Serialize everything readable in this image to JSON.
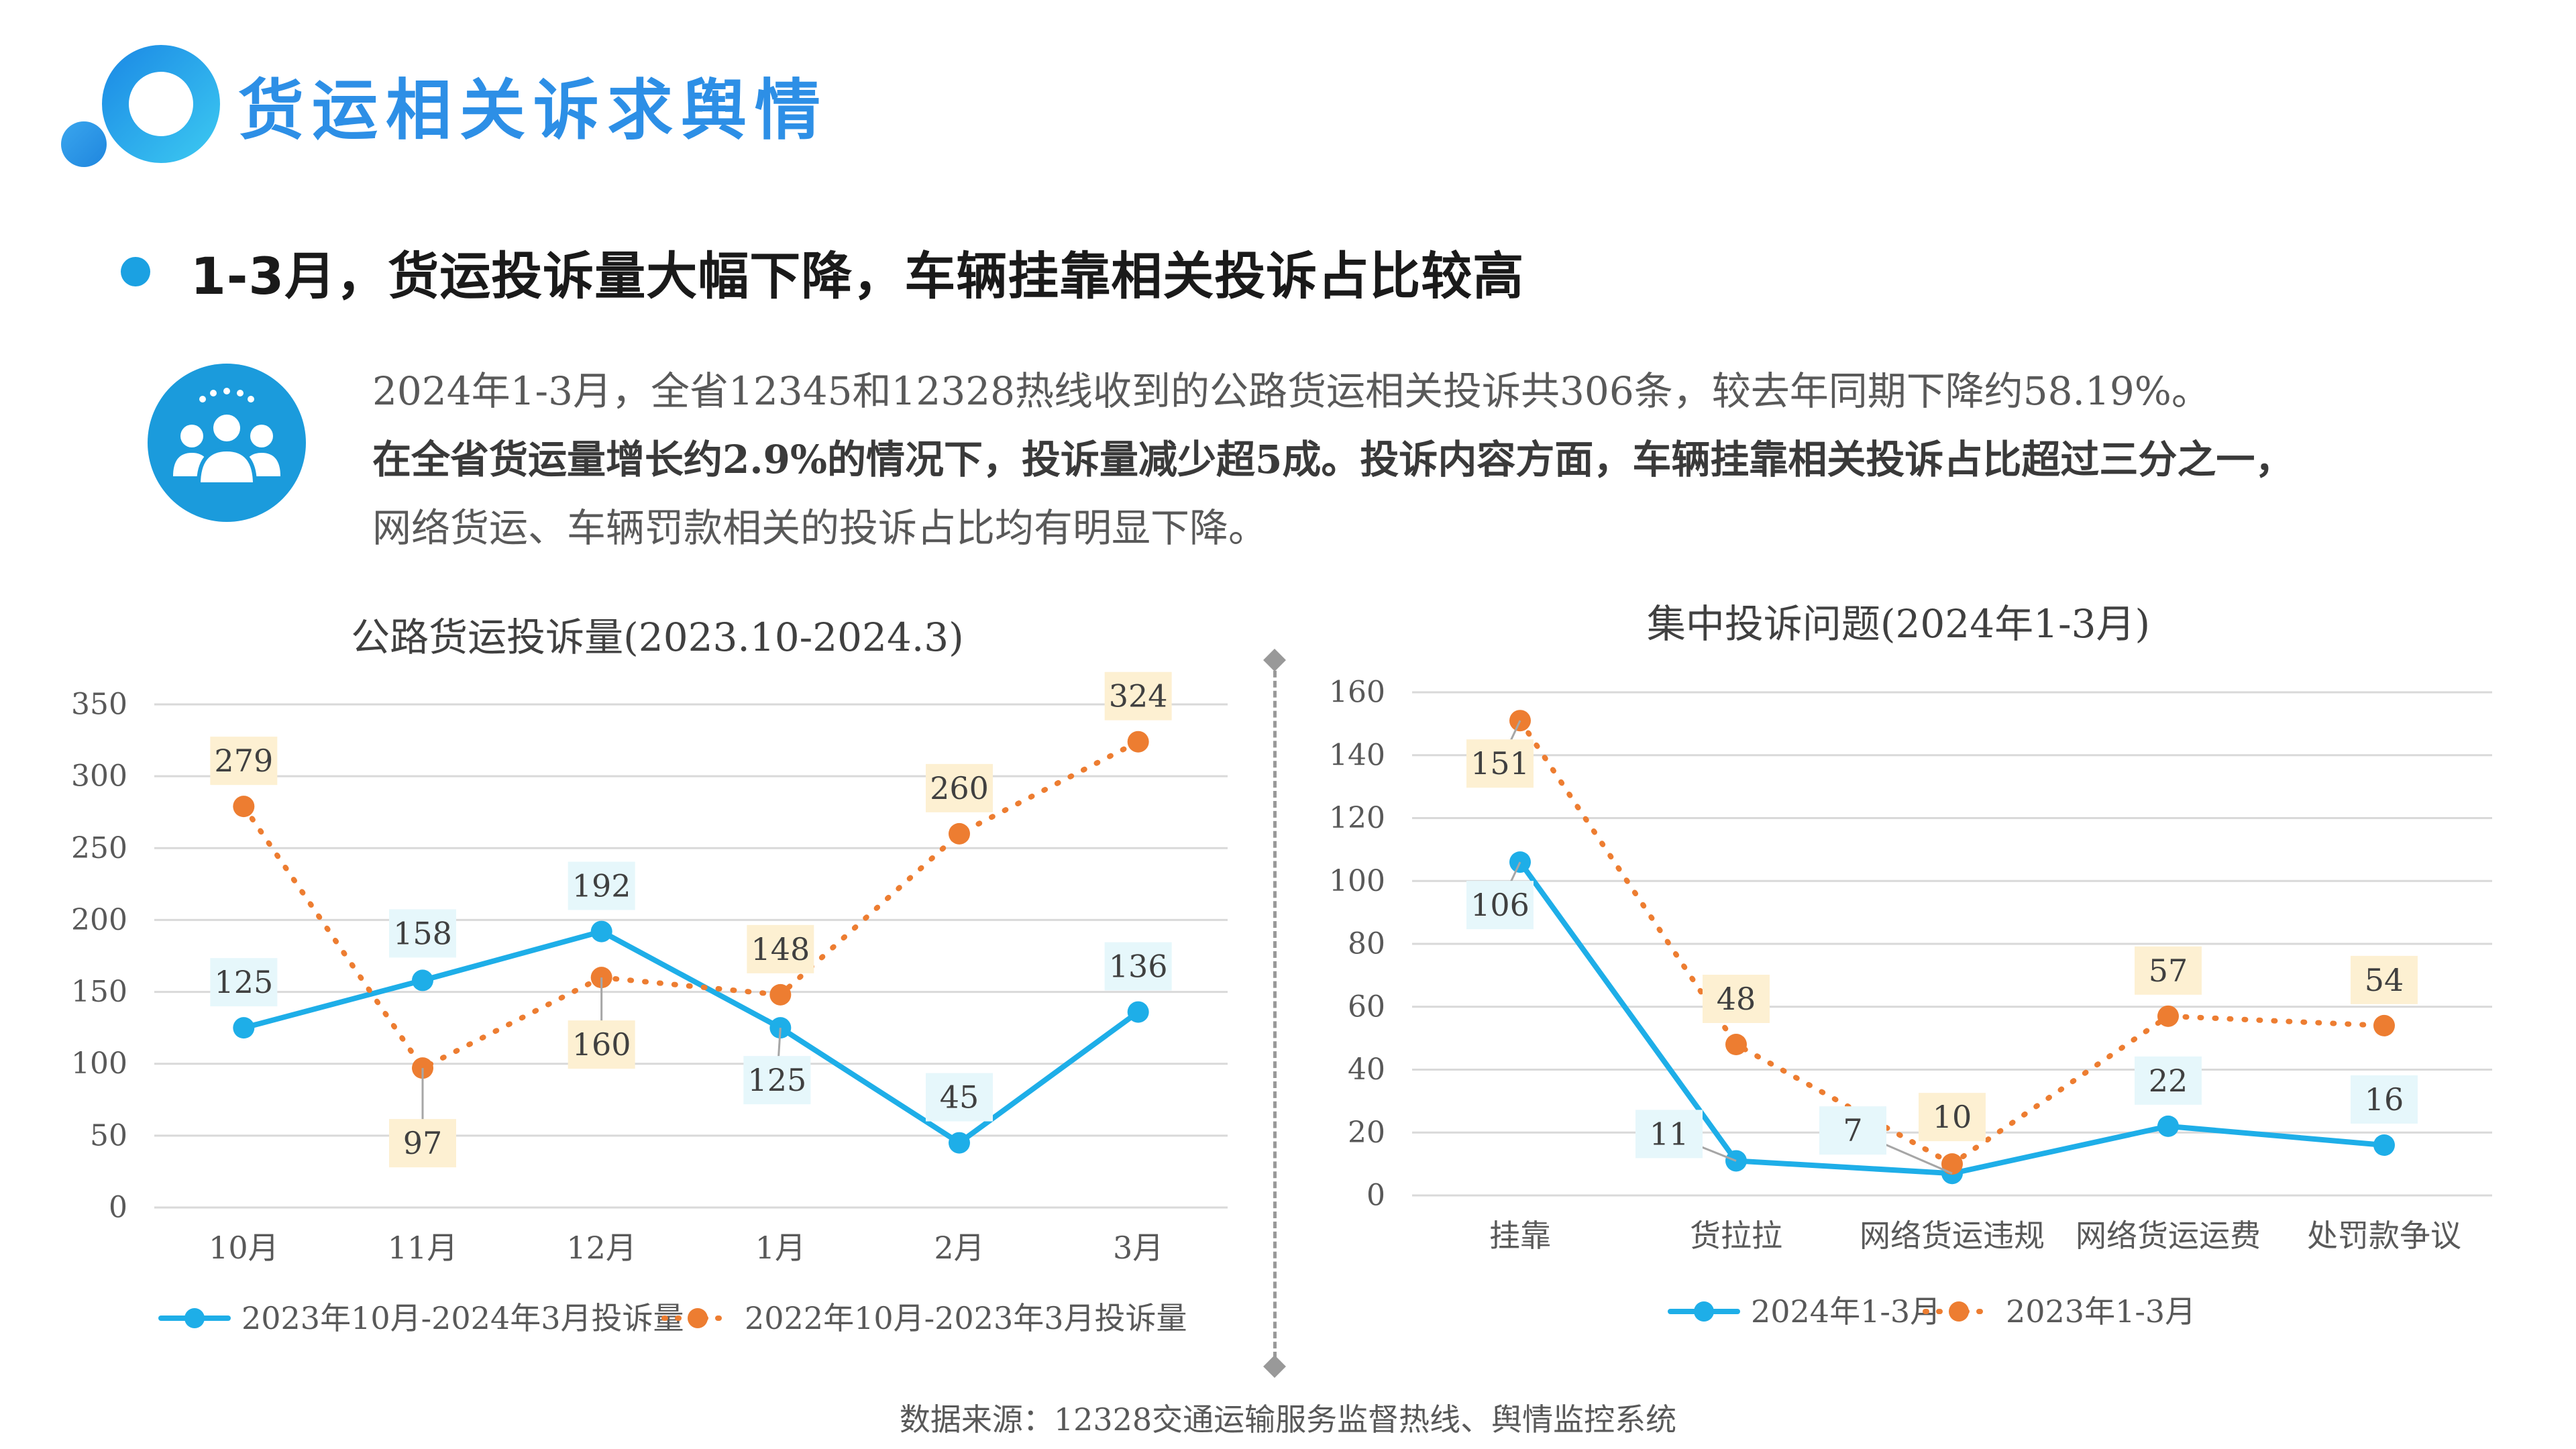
{
  "header": {
    "title": "货运相关诉求舆情",
    "headline": "1-3月，货运投诉量大幅下降，车辆挂靠相关投诉占比较高",
    "accent_color": "#2d8fe6",
    "icon": "people-group-icon"
  },
  "summary": {
    "line1": "2024年1-3月，全省12345和12328热线收到的公路货运相关投诉共306条，较去年同期下降约58.19%。",
    "line2": "在全省货运量增长约2.9%的情况下，投诉量减少超5成。投诉内容方面，车辆挂靠相关投诉占比超过三分之一，",
    "line3": "网络货运、车辆罚款相关的投诉占比均有明显下降。"
  },
  "source": "数据来源：12328交通运输服务监督热线、舆情监控系统",
  "chart_data": [
    {
      "type": "line",
      "title": "公路货运投诉量(2023.10-2024.3)",
      "categories": [
        "10月",
        "11月",
        "12月",
        "1月",
        "2月",
        "3月"
      ],
      "ylim": [
        0,
        350
      ],
      "yticks": [
        0,
        50,
        100,
        150,
        200,
        250,
        300,
        350
      ],
      "grid": true,
      "legend_position": "bottom",
      "series": [
        {
          "name": "2023年10月-2024年3月投诉量",
          "values": [
            125,
            158,
            192,
            125,
            45,
            136
          ],
          "color": "#1eaee8",
          "style": "solid",
          "labels": [
            "125",
            "158",
            "192",
            "125",
            "45",
            "136"
          ]
        },
        {
          "name": "2022年10月-2023年3月投诉量",
          "values": [
            279,
            97,
            160,
            148,
            260,
            324
          ],
          "color": "#ed7d31",
          "style": "dotted",
          "labels": [
            "279",
            "97",
            "160",
            "148",
            "260",
            "324"
          ]
        }
      ]
    },
    {
      "type": "line",
      "title": "集中投诉问题(2024年1-3月)",
      "categories": [
        "挂靠",
        "货拉拉",
        "网络货运违规",
        "网络货运运费",
        "处罚款争议"
      ],
      "ylim": [
        0,
        160
      ],
      "yticks": [
        0,
        20,
        40,
        60,
        80,
        100,
        120,
        140,
        160
      ],
      "grid": true,
      "legend_position": "bottom",
      "series": [
        {
          "name": "2024年1-3月",
          "values": [
            106,
            11,
            7,
            22,
            16
          ],
          "color": "#1eaee8",
          "style": "solid",
          "labels": [
            "106",
            "11",
            "7",
            "22",
            "16"
          ]
        },
        {
          "name": "2023年1-3月",
          "values": [
            151,
            48,
            10,
            57,
            54
          ],
          "color": "#ed7d31",
          "style": "dotted",
          "labels": [
            "151",
            "48",
            "10",
            "57",
            "54"
          ]
        }
      ]
    }
  ]
}
